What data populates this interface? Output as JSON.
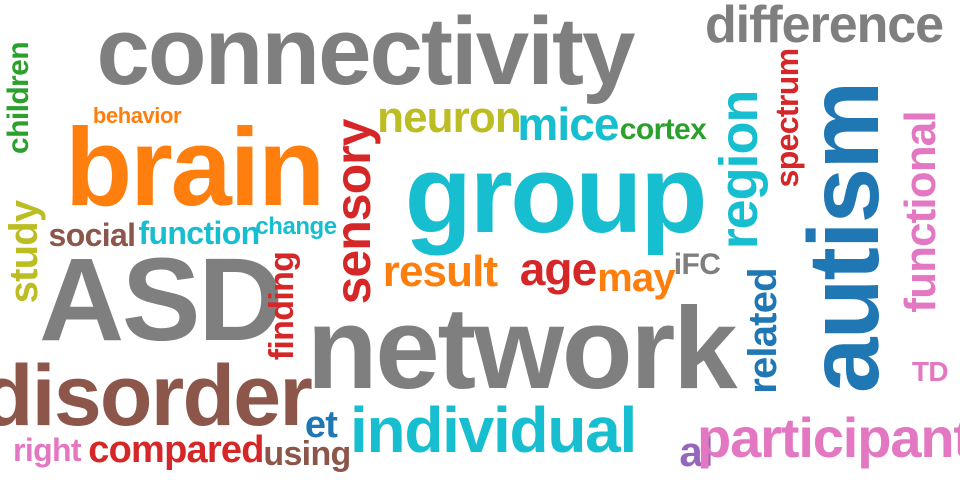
{
  "words": {
    "connectivity": {
      "text": "connectivity",
      "color": "#7f7f7f"
    },
    "difference": {
      "text": "difference",
      "color": "#7f7f7f"
    },
    "children": {
      "text": "children",
      "color": "#2ca02c"
    },
    "behavior": {
      "text": "behavior",
      "color": "#ff7f0e"
    },
    "brain": {
      "text": "brain",
      "color": "#ff7f0e"
    },
    "sensory": {
      "text": "sensory",
      "color": "#d62728"
    },
    "neuron": {
      "text": "neuron",
      "color": "#bcbd22"
    },
    "mice": {
      "text": "mice",
      "color": "#17becf"
    },
    "cortex": {
      "text": "cortex",
      "color": "#2ca02c"
    },
    "region": {
      "text": "region",
      "color": "#17becf"
    },
    "spectrum": {
      "text": "spectrum",
      "color": "#d62728"
    },
    "autism": {
      "text": "autism",
      "color": "#1f77b4"
    },
    "functional": {
      "text": "functional",
      "color": "#e377c2"
    },
    "group": {
      "text": "group",
      "color": "#17becf"
    },
    "study": {
      "text": "study",
      "color": "#bcbd22"
    },
    "social": {
      "text": "social",
      "color": "#8c564b"
    },
    "function": {
      "text": "function",
      "color": "#17becf"
    },
    "change": {
      "text": "change",
      "color": "#17becf"
    },
    "ASD": {
      "text": "ASD",
      "color": "#7f7f7f"
    },
    "finding": {
      "text": "finding",
      "color": "#d62728"
    },
    "result": {
      "text": "result",
      "color": "#ff7f0e"
    },
    "age": {
      "text": "age",
      "color": "#d62728"
    },
    "may": {
      "text": "may",
      "color": "#ff7f0e"
    },
    "iFC": {
      "text": "iFC",
      "color": "#7f7f7f"
    },
    "related": {
      "text": "related",
      "color": "#1f77b4"
    },
    "TD": {
      "text": "TD",
      "color": "#e377c2"
    },
    "network": {
      "text": "network",
      "color": "#7f7f7f"
    },
    "disorder": {
      "text": "disorder",
      "color": "#8c564b"
    },
    "et": {
      "text": "et",
      "color": "#1f77b4"
    },
    "individual": {
      "text": "individual",
      "color": "#17becf"
    },
    "right": {
      "text": "right",
      "color": "#e377c2"
    },
    "compared": {
      "text": "compared",
      "color": "#d62728"
    },
    "using": {
      "text": "using",
      "color": "#8c564b"
    },
    "al": {
      "text": "al",
      "color": "#9467bd"
    },
    "participant": {
      "text": "participant",
      "color": "#e377c2"
    }
  }
}
